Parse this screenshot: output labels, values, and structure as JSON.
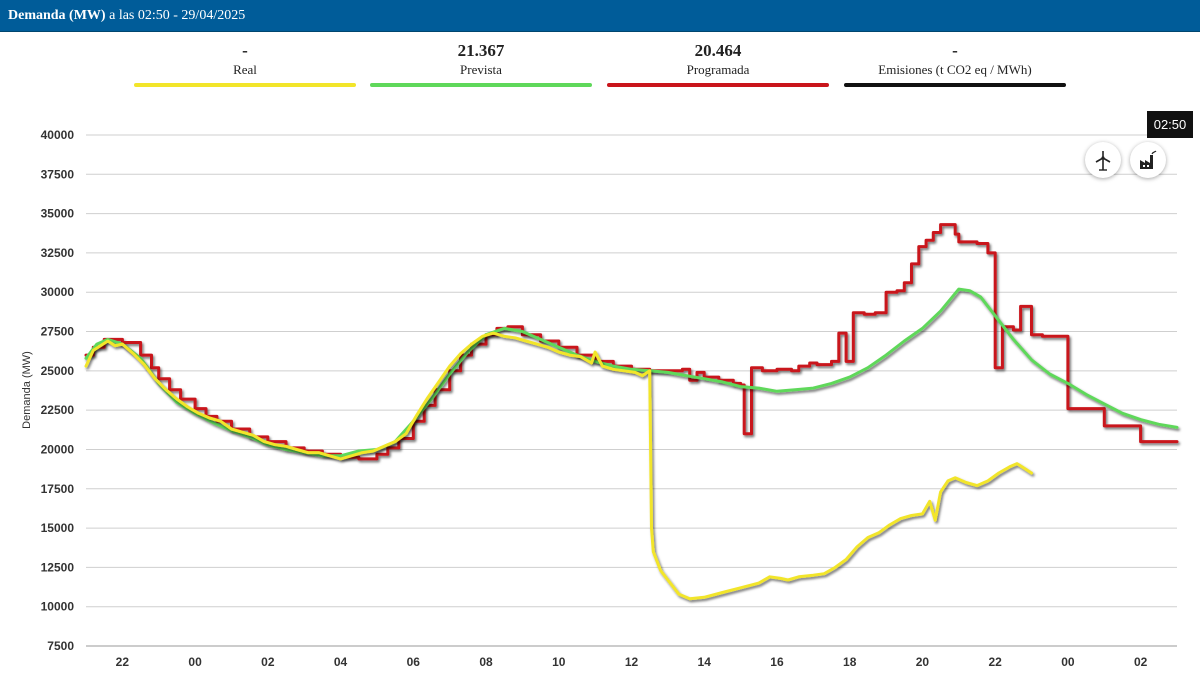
{
  "header": {
    "title_bold": "Demanda (MW)",
    "title_rest": "a las 02:50 - 29/04/2025"
  },
  "legend": [
    {
      "value": "-",
      "label": "Real",
      "color": "#f2e52a"
    },
    {
      "value": "21.367",
      "label": "Prevista",
      "color": "#5fd85a"
    },
    {
      "value": "20.464",
      "label": "Programada",
      "color": "#c9151b"
    },
    {
      "value": "-",
      "label": "Emisiones (t CO2 eq / MWh)",
      "color": "#111111"
    }
  ],
  "time_badge": "02:50",
  "icons": [
    "wind-turbine-icon",
    "factory-icon"
  ],
  "chart_data": {
    "type": "line",
    "ylabel": "Demanda (MW)",
    "ylim": [
      7500,
      40000
    ],
    "yticks": [
      7500,
      10000,
      12500,
      15000,
      17500,
      20000,
      22500,
      25000,
      27500,
      30000,
      32500,
      35000,
      37500,
      40000
    ],
    "xlim": [
      21.0,
      51.0
    ],
    "xticks": [
      {
        "x": 22,
        "label": "22"
      },
      {
        "x": 24,
        "label": "00"
      },
      {
        "x": 26,
        "label": "02"
      },
      {
        "x": 28,
        "label": "04"
      },
      {
        "x": 30,
        "label": "06"
      },
      {
        "x": 32,
        "label": "08"
      },
      {
        "x": 34,
        "label": "10"
      },
      {
        "x": 36,
        "label": "12"
      },
      {
        "x": 38,
        "label": "14"
      },
      {
        "x": 40,
        "label": "16"
      },
      {
        "x": 42,
        "label": "18"
      },
      {
        "x": 44,
        "label": "20"
      },
      {
        "x": 46,
        "label": "22"
      },
      {
        "x": 48,
        "label": "00"
      },
      {
        "x": 50,
        "label": "02"
      }
    ],
    "grid": true,
    "series": [
      {
        "name": "Programada",
        "color": "#c9151b",
        "step": true,
        "points": [
          [
            21.0,
            26000
          ],
          [
            21.2,
            26500
          ],
          [
            21.5,
            27000
          ],
          [
            22.0,
            26800
          ],
          [
            22.5,
            26000
          ],
          [
            22.8,
            25200
          ],
          [
            23.0,
            24500
          ],
          [
            23.3,
            23800
          ],
          [
            23.6,
            23200
          ],
          [
            24.0,
            22600
          ],
          [
            24.3,
            22100
          ],
          [
            24.6,
            21800
          ],
          [
            25.0,
            21300
          ],
          [
            25.5,
            20800
          ],
          [
            26.0,
            20500
          ],
          [
            26.5,
            20100
          ],
          [
            27.0,
            19900
          ],
          [
            27.5,
            19700
          ],
          [
            28.0,
            19500
          ],
          [
            28.5,
            19400
          ],
          [
            29.0,
            19700
          ],
          [
            29.3,
            20100
          ],
          [
            29.6,
            20700
          ],
          [
            30.0,
            21800
          ],
          [
            30.3,
            22800
          ],
          [
            30.6,
            23800
          ],
          [
            31.0,
            25000
          ],
          [
            31.3,
            26000
          ],
          [
            31.6,
            26700
          ],
          [
            32.0,
            27300
          ],
          [
            32.3,
            27700
          ],
          [
            32.6,
            27800
          ],
          [
            33.0,
            27300
          ],
          [
            33.5,
            26900
          ],
          [
            34.0,
            26500
          ],
          [
            34.5,
            26000
          ],
          [
            35.0,
            25600
          ],
          [
            35.5,
            25300
          ],
          [
            36.0,
            25100
          ],
          [
            36.5,
            25000
          ],
          [
            37.0,
            25000
          ],
          [
            37.4,
            25100
          ],
          [
            37.6,
            24400
          ],
          [
            37.8,
            24900
          ],
          [
            38.0,
            24600
          ],
          [
            38.4,
            24400
          ],
          [
            38.8,
            24200
          ],
          [
            39.0,
            24100
          ],
          [
            39.1,
            21000
          ],
          [
            39.3,
            25200
          ],
          [
            39.6,
            25000
          ],
          [
            40.0,
            25100
          ],
          [
            40.4,
            25000
          ],
          [
            40.6,
            25300
          ],
          [
            40.9,
            25500
          ],
          [
            41.1,
            25400
          ],
          [
            41.5,
            25600
          ],
          [
            41.7,
            27400
          ],
          [
            41.9,
            25600
          ],
          [
            42.1,
            28700
          ],
          [
            42.4,
            28600
          ],
          [
            42.7,
            28700
          ],
          [
            43.0,
            30000
          ],
          [
            43.3,
            30100
          ],
          [
            43.5,
            30600
          ],
          [
            43.7,
            31800
          ],
          [
            43.9,
            32900
          ],
          [
            44.1,
            33300
          ],
          [
            44.3,
            33800
          ],
          [
            44.5,
            34300
          ],
          [
            44.9,
            33700
          ],
          [
            45.0,
            33200
          ],
          [
            45.5,
            33100
          ],
          [
            45.8,
            32500
          ],
          [
            46.0,
            25200
          ],
          [
            46.2,
            27800
          ],
          [
            46.5,
            27600
          ],
          [
            46.7,
            29100
          ],
          [
            47.0,
            27300
          ],
          [
            47.3,
            27200
          ],
          [
            48.0,
            22600
          ],
          [
            49.0,
            21500
          ],
          [
            50.0,
            20500
          ],
          [
            51.0,
            20500
          ]
        ]
      },
      {
        "name": "Prevista",
        "color": "#5fd85a",
        "step": false,
        "points": [
          [
            21.0,
            25800
          ],
          [
            21.3,
            26700
          ],
          [
            21.6,
            27000
          ],
          [
            22.0,
            26700
          ],
          [
            22.5,
            25800
          ],
          [
            23.0,
            24200
          ],
          [
            23.5,
            23000
          ],
          [
            24.0,
            22300
          ],
          [
            24.5,
            21700
          ],
          [
            25.0,
            21200
          ],
          [
            25.5,
            20800
          ],
          [
            26.0,
            20300
          ],
          [
            26.5,
            20000
          ],
          [
            27.0,
            19800
          ],
          [
            27.5,
            19600
          ],
          [
            28.0,
            19600
          ],
          [
            28.5,
            19900
          ],
          [
            29.0,
            20000
          ],
          [
            29.5,
            20500
          ],
          [
            30.0,
            21800
          ],
          [
            30.5,
            23200
          ],
          [
            31.0,
            24800
          ],
          [
            31.5,
            26200
          ],
          [
            32.0,
            27300
          ],
          [
            32.5,
            27700
          ],
          [
            33.0,
            27500
          ],
          [
            33.5,
            27000
          ],
          [
            34.0,
            26500
          ],
          [
            34.5,
            26000
          ],
          [
            35.0,
            25600
          ],
          [
            35.5,
            25300
          ],
          [
            36.0,
            25100
          ],
          [
            36.5,
            25000
          ],
          [
            37.0,
            24900
          ],
          [
            37.5,
            24700
          ],
          [
            38.0,
            24500
          ],
          [
            38.5,
            24300
          ],
          [
            39.0,
            24000
          ],
          [
            39.5,
            23900
          ],
          [
            40.0,
            23700
          ],
          [
            40.5,
            23800
          ],
          [
            41.0,
            23900
          ],
          [
            41.5,
            24200
          ],
          [
            42.0,
            24600
          ],
          [
            42.5,
            25200
          ],
          [
            43.0,
            26000
          ],
          [
            43.5,
            26900
          ],
          [
            44.0,
            27700
          ],
          [
            44.5,
            28800
          ],
          [
            45.0,
            30200
          ],
          [
            45.3,
            30100
          ],
          [
            45.6,
            29700
          ],
          [
            46.0,
            28500
          ],
          [
            46.5,
            27000
          ],
          [
            47.0,
            25700
          ],
          [
            47.5,
            24800
          ],
          [
            48.0,
            24200
          ],
          [
            48.5,
            23500
          ],
          [
            49.0,
            22900
          ],
          [
            49.5,
            22300
          ],
          [
            50.0,
            21900
          ],
          [
            50.5,
            21600
          ],
          [
            51.0,
            21400
          ]
        ]
      },
      {
        "name": "Real",
        "color": "#f2e52a",
        "step": false,
        "points": [
          [
            21.0,
            25300
          ],
          [
            21.2,
            26300
          ],
          [
            21.4,
            26600
          ],
          [
            21.6,
            26900
          ],
          [
            21.8,
            26600
          ],
          [
            22.0,
            26700
          ],
          [
            22.3,
            26100
          ],
          [
            22.6,
            25400
          ],
          [
            22.9,
            24500
          ],
          [
            23.2,
            23800
          ],
          [
            23.5,
            23200
          ],
          [
            23.8,
            22700
          ],
          [
            24.1,
            22300
          ],
          [
            24.4,
            22000
          ],
          [
            24.7,
            21800
          ],
          [
            25.0,
            21300
          ],
          [
            25.3,
            21100
          ],
          [
            25.6,
            20900
          ],
          [
            25.9,
            20500
          ],
          [
            26.2,
            20300
          ],
          [
            26.5,
            20200
          ],
          [
            26.8,
            20000
          ],
          [
            27.1,
            19800
          ],
          [
            27.4,
            19800
          ],
          [
            27.7,
            19600
          ],
          [
            28.0,
            19400
          ],
          [
            28.3,
            19600
          ],
          [
            28.6,
            19800
          ],
          [
            28.9,
            19900
          ],
          [
            29.2,
            20200
          ],
          [
            29.5,
            20500
          ],
          [
            29.8,
            21000
          ],
          [
            30.1,
            22200
          ],
          [
            30.4,
            23300
          ],
          [
            30.7,
            24300
          ],
          [
            31.0,
            25300
          ],
          [
            31.3,
            26100
          ],
          [
            31.6,
            26700
          ],
          [
            31.9,
            27200
          ],
          [
            32.2,
            27400
          ],
          [
            32.5,
            27200
          ],
          [
            32.8,
            27100
          ],
          [
            33.1,
            26900
          ],
          [
            33.4,
            26700
          ],
          [
            33.7,
            26500
          ],
          [
            34.0,
            26200
          ],
          [
            34.3,
            26000
          ],
          [
            34.6,
            25900
          ],
          [
            34.9,
            25500
          ],
          [
            35.0,
            26200
          ],
          [
            35.2,
            25300
          ],
          [
            35.5,
            25100
          ],
          [
            35.8,
            25000
          ],
          [
            36.1,
            24900
          ],
          [
            36.3,
            24700
          ],
          [
            36.5,
            25000
          ],
          [
            36.55,
            15000
          ],
          [
            36.6,
            13500
          ],
          [
            36.8,
            12300
          ],
          [
            37.0,
            11700
          ],
          [
            37.3,
            10800
          ],
          [
            37.6,
            10500
          ],
          [
            38.0,
            10600
          ],
          [
            38.5,
            10900
          ],
          [
            39.0,
            11200
          ],
          [
            39.5,
            11500
          ],
          [
            39.8,
            11900
          ],
          [
            40.1,
            11800
          ],
          [
            40.3,
            11700
          ],
          [
            40.6,
            11900
          ],
          [
            41.0,
            12000
          ],
          [
            41.3,
            12100
          ],
          [
            41.6,
            12500
          ],
          [
            41.9,
            13000
          ],
          [
            42.2,
            13800
          ],
          [
            42.5,
            14400
          ],
          [
            42.8,
            14700
          ],
          [
            43.1,
            15200
          ],
          [
            43.4,
            15600
          ],
          [
            43.7,
            15800
          ],
          [
            44.0,
            15900
          ],
          [
            44.2,
            16700
          ],
          [
            44.35,
            15500
          ],
          [
            44.5,
            17300
          ],
          [
            44.7,
            18000
          ],
          [
            44.9,
            18200
          ],
          [
            45.2,
            17900
          ],
          [
            45.5,
            17700
          ],
          [
            45.8,
            18000
          ],
          [
            46.1,
            18500
          ],
          [
            46.4,
            18900
          ],
          [
            46.6,
            19100
          ],
          [
            46.8,
            18800
          ],
          [
            47.0,
            18500
          ]
        ]
      }
    ]
  }
}
